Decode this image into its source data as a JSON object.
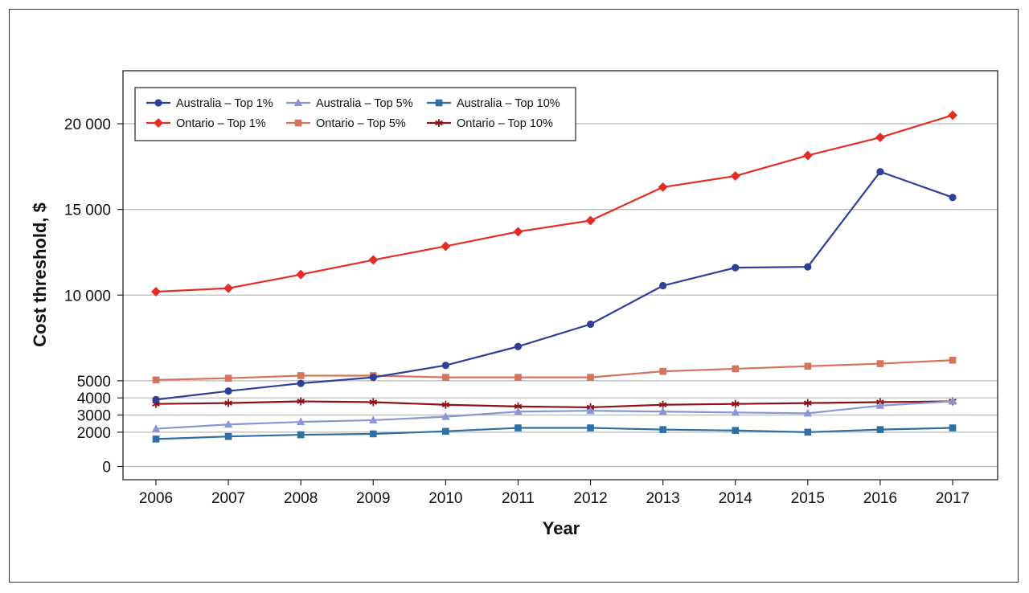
{
  "chart_data": {
    "type": "line",
    "title": "",
    "xlabel": "Year",
    "ylabel": "Cost threshold, $",
    "x": [
      2006,
      2007,
      2008,
      2009,
      2010,
      2011,
      2012,
      2013,
      2014,
      2015,
      2016,
      2017
    ],
    "ylim": [
      -1000,
      23000
    ],
    "yticks": [
      0,
      2000,
      3000,
      4000,
      5000,
      10000,
      15000,
      20000
    ],
    "ytick_labels": [
      "0",
      "2000",
      "3000",
      "4000",
      "5000",
      "10 000",
      "15 000",
      "20 000"
    ],
    "grid": "horizontal",
    "legend_position": "top-left",
    "series": [
      {
        "name": "Australia – Top 1%",
        "color": "#2e3f9a",
        "marker": "circle",
        "values": [
          3900,
          4400,
          4850,
          5200,
          5900,
          7000,
          8300,
          10550,
          11600,
          11650,
          17200,
          15700
        ]
      },
      {
        "name": "Australia – Top 5%",
        "color": "#8896d6",
        "marker": "triangle",
        "values": [
          2200,
          2450,
          2600,
          2700,
          2900,
          3200,
          3250,
          3200,
          3150,
          3100,
          3550,
          3800
        ]
      },
      {
        "name": "Australia – Top 10%",
        "color": "#2f6fa3",
        "marker": "square",
        "values": [
          1600,
          1750,
          1850,
          1900,
          2050,
          2250,
          2250,
          2150,
          2100,
          2000,
          2150,
          2250
        ]
      },
      {
        "name": "Ontario – Top 1%",
        "color": "#e62d25",
        "marker": "diamond",
        "values": [
          10200,
          10400,
          11200,
          12050,
          12850,
          13700,
          14350,
          16300,
          16950,
          18150,
          19200,
          20500
        ]
      },
      {
        "name": "Ontario – Top 5%",
        "color": "#d4735e",
        "marker": "square",
        "values": [
          5050,
          5150,
          5300,
          5300,
          5200,
          5200,
          5200,
          5550,
          5700,
          5850,
          6000,
          6200
        ]
      },
      {
        "name": "Ontario – Top 10%",
        "color": "#8b1218",
        "marker": "asterisk",
        "values": [
          3650,
          3700,
          3800,
          3750,
          3600,
          3500,
          3450,
          3600,
          3650,
          3700,
          3750,
          3800
        ]
      }
    ]
  }
}
